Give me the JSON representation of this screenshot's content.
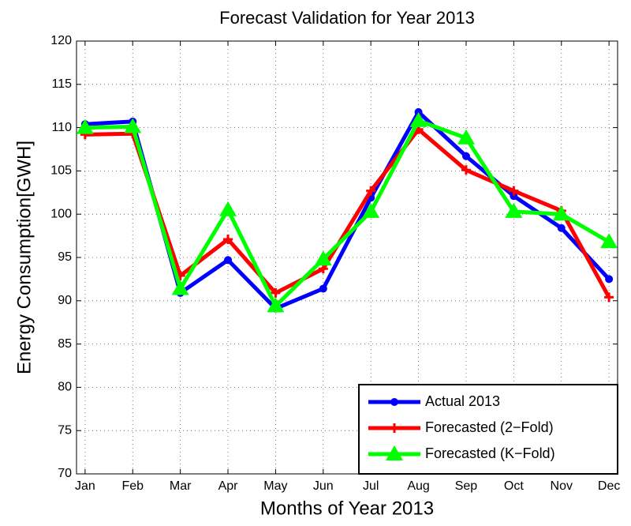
{
  "chart_data": {
    "type": "line",
    "title": "Forecast Validation for Year 2013",
    "x_label": "Months of Year 2013",
    "y_label": "Energy Consumption[GWH]",
    "categories": [
      "Jan",
      "Feb",
      "Mar",
      "Apr",
      "May",
      "Jun",
      "Jul",
      "Aug",
      "Sep",
      "Oct",
      "Nov",
      "Dec"
    ],
    "series": [
      {
        "name": "Actual 2013",
        "color": "#0000ff",
        "marker": "circle",
        "values": [
          110.4,
          110.7,
          90.9,
          94.7,
          89.1,
          91.4,
          101.9,
          111.8,
          106.7,
          102.1,
          98.4,
          92.5
        ]
      },
      {
        "name": "Forecasted (2−Fold)",
        "color": "#ff0000",
        "marker": "plus",
        "values": [
          109.2,
          109.3,
          92.9,
          97.1,
          90.9,
          93.7,
          102.7,
          109.8,
          105.1,
          102.7,
          100.4,
          90.4
        ]
      },
      {
        "name": "Forecasted (K−Fold)",
        "color": "#00ff00",
        "marker": "triangle",
        "values": [
          110.0,
          110.1,
          91.4,
          100.5,
          89.4,
          94.8,
          100.3,
          110.8,
          108.8,
          100.3,
          100.0,
          96.8
        ]
      }
    ],
    "ylim": [
      70,
      120
    ],
    "yticks": [
      70,
      75,
      80,
      85,
      90,
      95,
      100,
      105,
      110,
      115,
      120
    ],
    "grid": true,
    "legend": "lower right"
  }
}
